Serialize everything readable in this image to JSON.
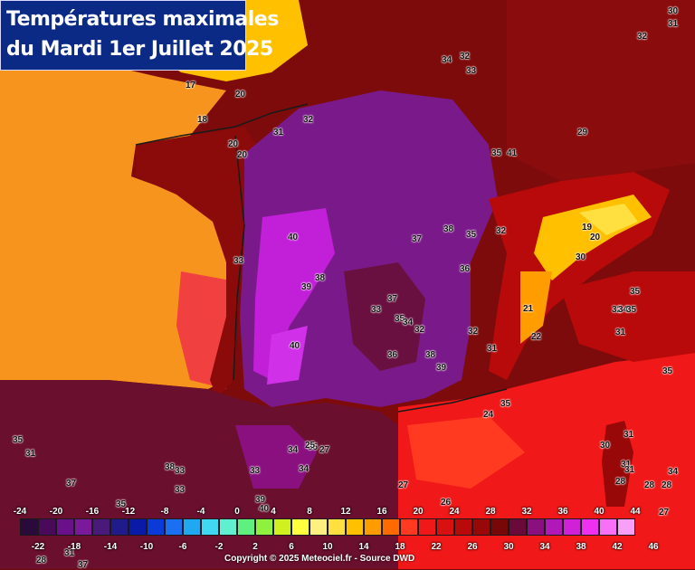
{
  "title": {
    "line1": "Températures maximales",
    "line2": "du Mardi 1er Juillet 2025"
  },
  "copyright": "Copyright © 2025 Meteociel.fr - Source DWD",
  "colors": {
    "ocean_west": "#f7941d",
    "ocean_hot": "#f04040",
    "uk_channel": "#ffc000",
    "europe_dark": "#8b0a0a",
    "france_purple": "#7a1a8a",
    "france_core": "#c21fd8",
    "mediterranean": "#f01818",
    "alps_yellow": "#ffe040",
    "spain": "#6a0f2e"
  },
  "legend": {
    "upper_labels": [
      "-24",
      "-20",
      "-16",
      "-12",
      "-8",
      "-4",
      "0",
      "4",
      "8",
      "12",
      "16",
      "20",
      "24",
      "28",
      "32",
      "36",
      "40",
      "44"
    ],
    "lower_labels": [
      "-22",
      "-18",
      "-14",
      "-10",
      "-6",
      "-2",
      "2",
      "6",
      "10",
      "14",
      "18",
      "22",
      "26",
      "30",
      "34",
      "38",
      "42",
      "46"
    ],
    "colors": [
      "#2a0a3a",
      "#4a0a5a",
      "#6a108a",
      "#7a1a9a",
      "#4a1a7a",
      "#201a8a",
      "#0a1aa8",
      "#0a3ad8",
      "#1a70f0",
      "#20a8f0",
      "#40d8f0",
      "#60f0d0",
      "#60f080",
      "#90f040",
      "#d0f020",
      "#ffff40",
      "#fff080",
      "#ffe040",
      "#ffc000",
      "#ff9c00",
      "#ff6a00",
      "#ff3a20",
      "#f01818",
      "#d81010",
      "#b80a0a",
      "#980808",
      "#780808",
      "#6a0a3a",
      "#8a1080",
      "#b018b8",
      "#d020d8",
      "#f030f0",
      "#f870f8",
      "#f8a0f8"
    ]
  },
  "temperature_labels": [
    {
      "t": "30"
    },
    {
      "t": "31"
    },
    {
      "t": "32"
    },
    {
      "t": "34"
    },
    {
      "t": "32"
    },
    {
      "t": "33"
    },
    {
      "t": "17"
    },
    {
      "t": "20"
    },
    {
      "t": "18"
    },
    {
      "t": "32"
    },
    {
      "t": "31"
    },
    {
      "t": "29"
    },
    {
      "t": "20"
    },
    {
      "t": "20"
    },
    {
      "t": "35"
    },
    {
      "t": "41"
    },
    {
      "t": "40"
    },
    {
      "t": "37"
    },
    {
      "t": "38"
    },
    {
      "t": "35"
    },
    {
      "t": "32"
    },
    {
      "t": "33"
    },
    {
      "t": "38"
    },
    {
      "t": "39"
    },
    {
      "t": "36"
    },
    {
      "t": "37"
    },
    {
      "t": "33"
    },
    {
      "t": "35"
    },
    {
      "t": "34"
    },
    {
      "t": "32"
    },
    {
      "t": "32"
    },
    {
      "t": "40"
    },
    {
      "t": "36"
    },
    {
      "t": "38"
    },
    {
      "t": "39"
    },
    {
      "t": "31"
    },
    {
      "t": "35"
    },
    {
      "t": "24"
    },
    {
      "t": "35"
    },
    {
      "t": "31"
    },
    {
      "t": "37"
    },
    {
      "t": "33"
    },
    {
      "t": "28"
    },
    {
      "t": "31"
    },
    {
      "t": "34"
    },
    {
      "t": "35"
    },
    {
      "t": "38"
    },
    {
      "t": "33"
    },
    {
      "t": "39"
    },
    {
      "t": "40"
    },
    {
      "t": "26"
    },
    {
      "t": "27"
    },
    {
      "t": "30"
    },
    {
      "t": "31"
    },
    {
      "t": "31"
    },
    {
      "t": "28"
    },
    {
      "t": "28"
    },
    {
      "t": "27"
    },
    {
      "t": "35"
    },
    {
      "t": "34"
    },
    {
      "t": "35"
    },
    {
      "t": "25"
    },
    {
      "t": "27"
    },
    {
      "t": "35"
    },
    {
      "t": "31"
    },
    {
      "t": "19"
    },
    {
      "t": "20"
    },
    {
      "t": "30"
    },
    {
      "t": "21"
    },
    {
      "t": "22"
    },
    {
      "t": "32"
    },
    {
      "t": "34"
    },
    {
      "t": "35"
    },
    {
      "t": "37"
    },
    {
      "t": "28"
    },
    {
      "t": "31"
    },
    {
      "t": "33"
    },
    {
      "t": "34"
    }
  ]
}
